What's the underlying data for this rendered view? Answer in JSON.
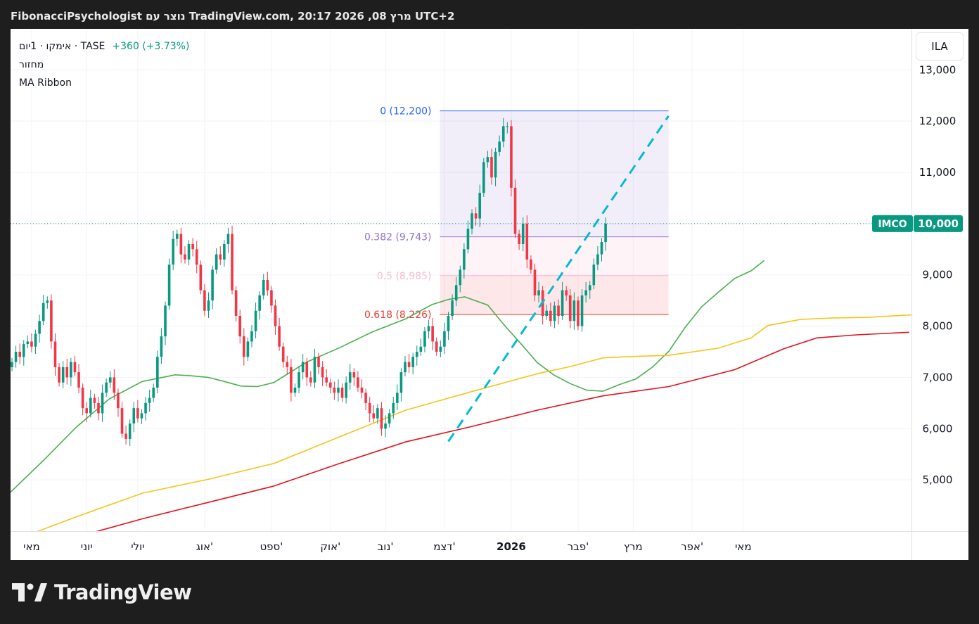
{
  "header": {
    "title": "FibonacciPsychologist נוצר עם TradingView.com, 20:17 2026 ,08 מרץ UTC+2"
  },
  "legend": {
    "symbol": "אימקו · 1יום · TASE",
    "change": "+360 (+3.73%)",
    "indicator_1": "מחזור",
    "indicator_2": "MA Ribbon"
  },
  "currency": "ILA",
  "price_tag": {
    "symbol": "IMCO",
    "value": "10,000"
  },
  "brand": "TradingView",
  "colors": {
    "up": "#089981",
    "down": "#f23645",
    "ma_green": "#4caf50",
    "ma_yellow": "#f5c518",
    "ma_red": "#e0121c",
    "fib_0": "#2962ff",
    "fib_382": "#9575cd",
    "fib_5": "#f8bbd0",
    "fib_618": "#e53935",
    "trend": "#00bcd4",
    "price_tag_bg": "#089981"
  },
  "chart_data": {
    "type": "candlestick",
    "ylim": [
      4000,
      13800
    ],
    "y_ticks": [
      {
        "value": 5000,
        "label": "5,000"
      },
      {
        "value": 6000,
        "label": "6,000"
      },
      {
        "value": 7000,
        "label": "7,000"
      },
      {
        "value": 8000,
        "label": "8,000"
      },
      {
        "value": 9000,
        "label": "9,000"
      },
      {
        "value": 11000,
        "label": "11,000"
      },
      {
        "value": 12000,
        "label": "12,000"
      },
      {
        "value": 13000,
        "label": "13,000"
      }
    ],
    "x_ticks": [
      {
        "i": 5,
        "label": "מאי",
        "bold": false
      },
      {
        "i": 19,
        "label": "יוני",
        "bold": false
      },
      {
        "i": 32,
        "label": "יולי",
        "bold": false
      },
      {
        "i": 49,
        "label": "אוג'",
        "bold": false
      },
      {
        "i": 66,
        "label": "ספט'",
        "bold": false
      },
      {
        "i": 81,
        "label": "אוק'",
        "bold": false
      },
      {
        "i": 95,
        "label": "נוב'",
        "bold": false
      },
      {
        "i": 110,
        "label": "דצמ'",
        "bold": false
      },
      {
        "i": 127,
        "label": "2026",
        "bold": true
      },
      {
        "i": 144,
        "label": "פבר'",
        "bold": false
      },
      {
        "i": 158,
        "label": "מרץ",
        "bold": false
      },
      {
        "i": 173,
        "label": "אפר'",
        "bold": false
      },
      {
        "i": 186,
        "label": "מאי",
        "bold": false
      }
    ],
    "closes": [
      7300,
      7500,
      7400,
      7650,
      7700,
      7600,
      7850,
      8100,
      8450,
      8500,
      7700,
      7200,
      6900,
      7200,
      7000,
      7300,
      7100,
      6800,
      6400,
      6300,
      6600,
      6500,
      6300,
      6700,
      6900,
      7000,
      6700,
      6400,
      5900,
      5800,
      6100,
      6400,
      6200,
      6300,
      6500,
      6600,
      6800,
      7400,
      7800,
      8400,
      9200,
      9700,
      9800,
      9400,
      9300,
      9600,
      9500,
      9200,
      8700,
      8300,
      8500,
      9100,
      9400,
      9300,
      9600,
      9800,
      8700,
      8200,
      7800,
      7400,
      7700,
      7900,
      8300,
      8600,
      8900,
      8700,
      8400,
      8000,
      7600,
      7300,
      7200,
      6700,
      6800,
      7100,
      7300,
      7000,
      6900,
      7400,
      7200,
      7000,
      6900,
      6800,
      6700,
      6800,
      6600,
      6900,
      7100,
      7000,
      6800,
      6700,
      6500,
      6300,
      6200,
      6400,
      6000,
      6100,
      6300,
      6500,
      6700,
      7100,
      7300,
      7200,
      7400,
      7500,
      7600,
      7900,
      8000,
      7700,
      7500,
      7600,
      7900,
      8200,
      8500,
      8800,
      9100,
      9500,
      9900,
      10200,
      10100,
      10600,
      11200,
      11300,
      10900,
      11400,
      11600,
      11900,
      11900,
      10700,
      9800,
      9600,
      10000,
      9300,
      9100,
      8600,
      8700,
      8200,
      8300,
      8100,
      8400,
      8200,
      8700,
      8600,
      8100,
      8500,
      8000,
      8600,
      8700,
      8800,
      9200,
      9400,
      9640,
      10000
    ],
    "ma_green": [
      [
        0,
        4760
      ],
      [
        10,
        5380
      ],
      [
        20,
        6030
      ],
      [
        30,
        6580
      ],
      [
        40,
        6920
      ],
      [
        50,
        7050
      ],
      [
        55,
        7030
      ],
      [
        60,
        7000
      ],
      [
        65,
        6920
      ],
      [
        70,
        6830
      ],
      [
        75,
        6820
      ],
      [
        80,
        6900
      ],
      [
        90,
        7300
      ],
      [
        100,
        7580
      ],
      [
        110,
        7890
      ],
      [
        120,
        8140
      ],
      [
        128,
        8420
      ],
      [
        133,
        8520
      ],
      [
        138,
        8570
      ],
      [
        145,
        8410
      ],
      [
        150,
        8020
      ],
      [
        155,
        7660
      ],
      [
        160,
        7290
      ],
      [
        165,
        7050
      ],
      [
        170,
        6880
      ],
      [
        175,
        6750
      ],
      [
        180,
        6730
      ],
      [
        185,
        6860
      ],
      [
        190,
        6970
      ],
      [
        195,
        7200
      ],
      [
        200,
        7510
      ],
      [
        205,
        7980
      ],
      [
        210,
        8380
      ],
      [
        215,
        8660
      ],
      [
        220,
        8930
      ],
      [
        225,
        9080
      ],
      [
        229,
        9280
      ]
    ],
    "ma_yellow": [
      [
        8,
        3990
      ],
      [
        20,
        4280
      ],
      [
        40,
        4740
      ],
      [
        60,
        5010
      ],
      [
        80,
        5320
      ],
      [
        100,
        5840
      ],
      [
        120,
        6360
      ],
      [
        140,
        6720
      ],
      [
        160,
        7070
      ],
      [
        170,
        7210
      ],
      [
        180,
        7380
      ],
      [
        190,
        7410
      ],
      [
        200,
        7430
      ],
      [
        215,
        7570
      ],
      [
        225,
        7770
      ],
      [
        230,
        8010
      ],
      [
        240,
        8130
      ],
      [
        250,
        8160
      ],
      [
        260,
        8170
      ],
      [
        274,
        8220
      ]
    ],
    "ma_red": [
      [
        26,
        3990
      ],
      [
        40,
        4240
      ],
      [
        60,
        4560
      ],
      [
        80,
        4880
      ],
      [
        100,
        5320
      ],
      [
        120,
        5740
      ],
      [
        140,
        6040
      ],
      [
        160,
        6360
      ],
      [
        180,
        6640
      ],
      [
        200,
        6820
      ],
      [
        220,
        7150
      ],
      [
        235,
        7560
      ],
      [
        245,
        7770
      ],
      [
        257,
        7830
      ],
      [
        273,
        7880
      ]
    ],
    "fib_levels": [
      {
        "level": "0",
        "value": 12200,
        "label": "0 (12,200)"
      },
      {
        "level": "0.382",
        "value": 9743,
        "label": "0.382 (9,743)"
      },
      {
        "level": "0.5",
        "value": 8985,
        "label": "0.5 (8,985)"
      },
      {
        "level": "0.618",
        "value": 8226,
        "label": "0.618 (8,226)"
      }
    ],
    "fib_range": {
      "i_start": 111,
      "i_end": 162
    },
    "trend_line": {
      "from": {
        "i": 111,
        "value": 5750
      },
      "to": {
        "i": 162,
        "value": 12100
      }
    },
    "current_price": 10000
  }
}
